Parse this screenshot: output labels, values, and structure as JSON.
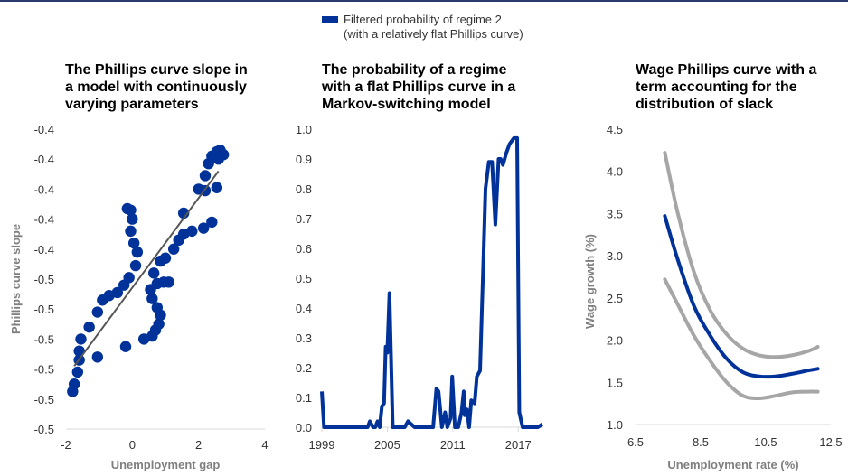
{
  "colors": {
    "blue": "#003299",
    "grey": "#a6a6a6",
    "fit_line": "#555555",
    "axis": "#d9d9d9"
  },
  "legend": {
    "line1": "Filtered probability of regime 2",
    "line2": "(with a relatively flat Phillips curve)"
  },
  "chart_data": [
    {
      "type": "scatter",
      "title_lines": [
        "The Phillips curve slope in",
        "a model with continuously",
        "varying parameters"
      ],
      "xlabel": "Unemployment gap",
      "ylabel": "Phillips curve slope",
      "xlim": [
        -2,
        4
      ],
      "ylim": [
        0,
        10
      ],
      "xticks": [
        -2,
        0,
        2,
        4
      ],
      "xtick_labels": [
        "-2",
        "0",
        "2",
        "4"
      ],
      "ytick_labels": [
        "-0.5",
        "-0.5",
        "-0.5",
        "-0.5",
        "-0.5",
        "-0.5",
        "-0.4",
        "-0.4",
        "-0.4",
        "-0.4",
        "-0.4"
      ],
      "fit_line": [
        [
          -1.75,
          2.1
        ],
        [
          2.6,
          8.6
        ]
      ],
      "points": [
        [
          -1.8,
          1.25
        ],
        [
          -1.75,
          1.5
        ],
        [
          -1.65,
          1.9
        ],
        [
          -1.6,
          2.3
        ],
        [
          -1.6,
          2.6
        ],
        [
          -1.55,
          3.0
        ],
        [
          -1.3,
          3.4
        ],
        [
          -1.05,
          3.9
        ],
        [
          -0.9,
          4.3
        ],
        [
          -0.7,
          4.45
        ],
        [
          -0.45,
          4.55
        ],
        [
          -0.25,
          4.8
        ],
        [
          -0.1,
          5.05
        ],
        [
          -0.2,
          2.75
        ],
        [
          0.1,
          5.45
        ],
        [
          0.15,
          5.9
        ],
        [
          0.05,
          6.2
        ],
        [
          -0.05,
          6.6
        ],
        [
          0,
          7.0
        ],
        [
          -0.05,
          7.3
        ],
        [
          -0.15,
          7.35
        ],
        [
          -1.05,
          2.4
        ],
        [
          0.35,
          3.0
        ],
        [
          0.6,
          3.1
        ],
        [
          0.7,
          3.3
        ],
        [
          0.8,
          3.5
        ],
        [
          0.85,
          3.8
        ],
        [
          0.75,
          4.05
        ],
        [
          0.6,
          4.35
        ],
        [
          0.55,
          4.65
        ],
        [
          0.75,
          4.85
        ],
        [
          0.95,
          4.9
        ],
        [
          1.1,
          4.9
        ],
        [
          0.65,
          5.2
        ],
        [
          0.85,
          5.6
        ],
        [
          1.0,
          5.7
        ],
        [
          1.25,
          6.0
        ],
        [
          1.4,
          6.3
        ],
        [
          1.55,
          6.5
        ],
        [
          1.55,
          7.2
        ],
        [
          1.8,
          6.6
        ],
        [
          2.0,
          8.0
        ],
        [
          2.2,
          7.95
        ],
        [
          2.15,
          6.7
        ],
        [
          2.4,
          6.9
        ],
        [
          2.2,
          8.45
        ],
        [
          2.3,
          8.85
        ],
        [
          2.4,
          9.1
        ],
        [
          2.55,
          9.25
        ],
        [
          2.65,
          9.3
        ],
        [
          2.75,
          9.15
        ],
        [
          2.6,
          9.0
        ],
        [
          2.55,
          8.05
        ]
      ]
    },
    {
      "type": "line",
      "title_lines": [
        "The probability of a regime",
        "with a flat Phillips curve in a",
        "Markov-switching model"
      ],
      "ylim": [
        0,
        1
      ],
      "yticks": [
        0.0,
        0.1,
        0.2,
        0.3,
        0.4,
        0.5,
        0.6,
        0.7,
        0.8,
        0.9,
        1.0
      ],
      "ytick_labels": [
        "0.0",
        "0.1",
        "0.2",
        "0.3",
        "0.4",
        "0.5",
        "0.6",
        "0.7",
        "0.8",
        "0.9",
        "1.0"
      ],
      "xlim": [
        1999,
        2019.3
      ],
      "xticks": [
        1999,
        2005,
        2011,
        2017
      ],
      "xtick_labels": [
        "1999",
        "2005",
        "2011",
        "2017"
      ],
      "series": [
        {
          "x": [
            1999.0,
            1999.2,
            1999.4,
            2000.5,
            2002.0,
            2003.2,
            2003.4,
            2003.7,
            2003.9,
            2004.1,
            2004.3,
            2004.5,
            2004.7,
            2004.85,
            2005.0,
            2005.2,
            2005.5,
            2006.3,
            2006.6,
            2006.9,
            2007.5,
            2008.5,
            2009.2,
            2009.5,
            2009.7,
            2010.0,
            2010.3,
            2010.5,
            2010.8,
            2010.95,
            2011.2,
            2011.5,
            2011.8,
            2012.0,
            2012.1,
            2012.3,
            2012.5,
            2012.7,
            2013.0,
            2013.2,
            2013.5,
            2013.8,
            2014.0,
            2014.3,
            2014.6,
            2014.9,
            2015.2,
            2015.4,
            2015.6,
            2015.9,
            2016.2,
            2016.6,
            2016.9,
            2017.1,
            2017.4,
            2017.6,
            2017.8,
            2018.1,
            2018.4,
            2018.8,
            2019.2
          ],
          "y": [
            0.12,
            0.0,
            0.0,
            0.0,
            0.0,
            0.0,
            0.02,
            0.0,
            0.0,
            0.02,
            0.0,
            0.07,
            0.08,
            0.27,
            0.25,
            0.45,
            0.0,
            0.0,
            0.0,
            0.02,
            0.0,
            0.0,
            0.0,
            0.13,
            0.12,
            0.0,
            0.05,
            0.0,
            0.03,
            0.17,
            0.0,
            0.0,
            0.05,
            0.12,
            0.04,
            0.06,
            0.0,
            0.09,
            0.08,
            0.17,
            0.19,
            0.55,
            0.8,
            0.89,
            0.89,
            0.68,
            0.9,
            0.9,
            0.88,
            0.92,
            0.95,
            0.97,
            0.97,
            0.05,
            0.0,
            0.0,
            0.0,
            0.0,
            0.0,
            0.0,
            0.01
          ]
        }
      ]
    },
    {
      "type": "line",
      "title_lines": [
        "Wage Phillips curve with a",
        "term accounting for the",
        "distribution of slack"
      ],
      "xlabel": "Unemployment rate (%)",
      "ylabel": "Wage growth (%)",
      "xlim": [
        6.5,
        12.5
      ],
      "ylim": [
        1.0,
        4.5
      ],
      "xticks": [
        6.5,
        8.5,
        10.5,
        12.5
      ],
      "xtick_labels": [
        "6.5",
        "8.5",
        "10.5",
        "12.5"
      ],
      "yticks": [
        1.0,
        1.5,
        2.0,
        2.5,
        3.0,
        3.5,
        4.0,
        4.5
      ],
      "ytick_labels": [
        "1.0",
        "1.5",
        "2.0",
        "2.5",
        "3.0",
        "3.5",
        "4.0",
        "4.5"
      ],
      "series": [
        {
          "style": "grey",
          "x": [
            7.4,
            7.8,
            8.3,
            8.8,
            9.3,
            9.8,
            10.3,
            10.8,
            11.3,
            11.8,
            12.1
          ],
          "y": [
            4.22,
            3.5,
            2.8,
            2.35,
            2.07,
            1.9,
            1.82,
            1.8,
            1.82,
            1.87,
            1.92
          ]
        },
        {
          "style": "blue",
          "x": [
            7.4,
            7.8,
            8.3,
            8.8,
            9.3,
            9.8,
            10.3,
            10.8,
            11.3,
            11.8,
            12.1
          ],
          "y": [
            3.47,
            2.95,
            2.4,
            2.05,
            1.78,
            1.62,
            1.57,
            1.57,
            1.6,
            1.64,
            1.66
          ]
        },
        {
          "style": "grey",
          "x": [
            7.4,
            7.8,
            8.3,
            8.8,
            9.3,
            9.8,
            10.3,
            10.8,
            11.3,
            11.8,
            12.1
          ],
          "y": [
            2.72,
            2.42,
            2.05,
            1.75,
            1.5,
            1.34,
            1.31,
            1.34,
            1.38,
            1.39,
            1.39
          ]
        }
      ]
    }
  ]
}
